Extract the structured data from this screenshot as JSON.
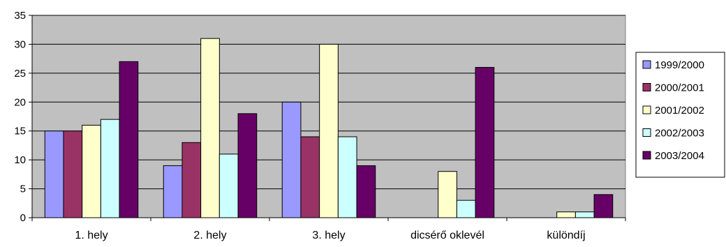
{
  "chart_data": {
    "type": "bar",
    "categories": [
      "1. hely",
      "2. hely",
      "3. hely",
      "dicsérő oklevél",
      "különdíj"
    ],
    "series": [
      {
        "name": "1999/2000",
        "color": "#9999FF",
        "values": [
          15,
          9,
          20,
          0,
          0
        ]
      },
      {
        "name": "2000/2001",
        "color": "#993366",
        "values": [
          15,
          13,
          14,
          0,
          0
        ]
      },
      {
        "name": "2001/2002",
        "color": "#FFFFCC",
        "values": [
          16,
          31,
          30,
          8,
          1
        ]
      },
      {
        "name": "2002/2003",
        "color": "#CCFFFF",
        "values": [
          17,
          11,
          14,
          3,
          1
        ]
      },
      {
        "name": "2003/2004",
        "color": "#660066",
        "values": [
          27,
          18,
          9,
          26,
          4
        ]
      }
    ],
    "y_ticks": [
      "0",
      "5",
      "10",
      "15",
      "20",
      "25",
      "30",
      "35"
    ],
    "ylim": [
      0,
      35
    ],
    "grid": true,
    "legend": "right",
    "plot_background": "#C0C0C0"
  }
}
